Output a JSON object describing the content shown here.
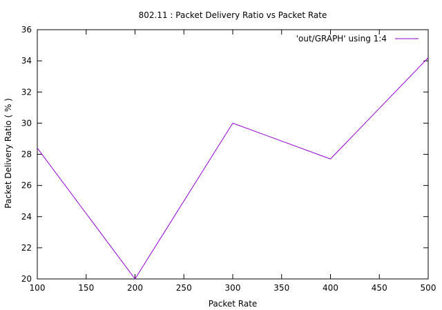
{
  "chart_data": {
    "type": "line",
    "title": "802.11 : Packet Delivery Ratio vs Packet Rate",
    "xlabel": "Packet Rate",
    "ylabel": "Packet Delivery Ratio ( % )",
    "xlim": [
      100,
      500
    ],
    "ylim": [
      20,
      36
    ],
    "xticks": [
      100,
      150,
      200,
      250,
      300,
      350,
      400,
      450,
      500
    ],
    "yticks": [
      20,
      22,
      24,
      26,
      28,
      30,
      32,
      34,
      36
    ],
    "grid": false,
    "legend_position": "top-right",
    "series": [
      {
        "name": "'out/GRAPH' using 1:4",
        "color": "#9400d3",
        "x": [
          100,
          200,
          300,
          400,
          500
        ],
        "y": [
          28.4,
          20.0,
          30.0,
          27.7,
          34.2
        ]
      }
    ]
  }
}
